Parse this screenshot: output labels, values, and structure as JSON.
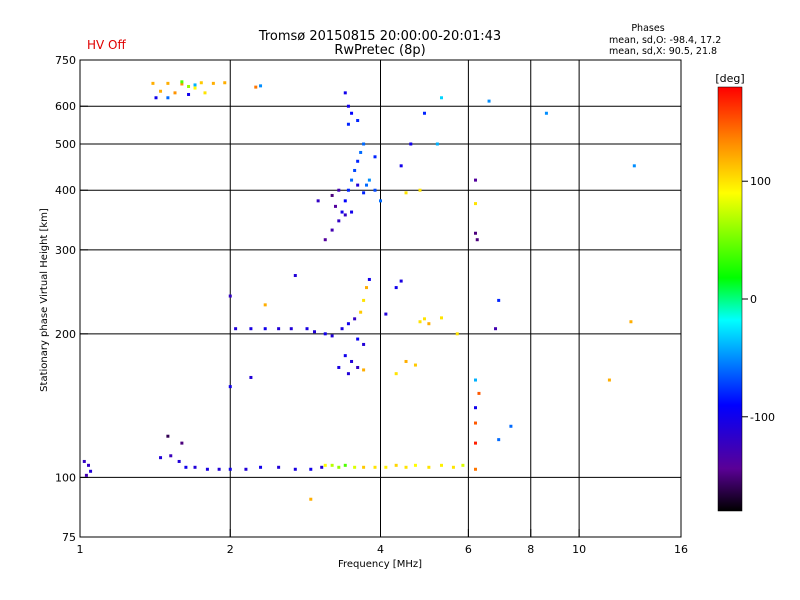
{
  "status": {
    "hv": "HV Off"
  },
  "header": {
    "title_line1": "Tromsø 20150815 20:00:00-20:01:43",
    "title_line2": "RwPretec (8p)"
  },
  "stats": {
    "heading": "Phases",
    "line_o": "mean, sd,O: -98.4, 17.2",
    "line_x": "mean, sd,X:  90.5, 21.8"
  },
  "colorbar": {
    "label": "[deg]",
    "ticks": [
      {
        "v": 100,
        "label": "100"
      },
      {
        "v": 0,
        "label": "0"
      },
      {
        "v": -100,
        "label": "-100"
      }
    ],
    "range": [
      -180,
      180
    ]
  },
  "chart_data": {
    "type": "scatter",
    "xlabel": "Frequency [MHz]",
    "ylabel": "Stationary phase Virtual Height [km]",
    "xscale": "log",
    "yscale": "log",
    "xlim": [
      1,
      16
    ],
    "ylim": [
      75,
      750
    ],
    "xticks": [
      1,
      2,
      4,
      6,
      8,
      10,
      16
    ],
    "xtick_labels": [
      "1",
      "2",
      "4",
      "6",
      "8",
      "10",
      "16"
    ],
    "x_grid": [
      2,
      4,
      6,
      8,
      10
    ],
    "yticks": [
      75,
      100,
      200,
      300,
      400,
      500,
      600,
      750
    ],
    "ytick_labels": [
      "75",
      "100",
      "200",
      "300",
      "400",
      "500",
      "600",
      "750"
    ],
    "y_grid": [
      100,
      200,
      300,
      400,
      500,
      600
    ],
    "color_scale": "phase in degrees, -180 (dark) to 180 (red)",
    "points": [
      [
        1.02,
        108,
        -120
      ],
      [
        1.04,
        106,
        -120
      ],
      [
        1.03,
        101,
        -130
      ],
      [
        1.05,
        103,
        -110
      ],
      [
        1.45,
        110,
        -110
      ],
      [
        1.52,
        111,
        -125
      ],
      [
        1.58,
        108,
        -110
      ],
      [
        1.63,
        105,
        -100
      ],
      [
        1.7,
        105,
        -110
      ],
      [
        1.8,
        104,
        -105
      ],
      [
        1.9,
        104,
        -110
      ],
      [
        2.0,
        104,
        -100
      ],
      [
        2.15,
        104,
        -110
      ],
      [
        2.3,
        105,
        -100
      ],
      [
        2.5,
        105,
        -110
      ],
      [
        2.7,
        104,
        -105
      ],
      [
        2.9,
        104,
        -100
      ],
      [
        3.05,
        105,
        -110
      ],
      [
        3.1,
        106,
        90
      ],
      [
        3.2,
        106,
        70
      ],
      [
        3.3,
        105,
        60
      ],
      [
        3.4,
        106,
        40
      ],
      [
        3.55,
        105,
        80
      ],
      [
        3.7,
        105,
        110
      ],
      [
        3.9,
        105,
        100
      ],
      [
        4.1,
        105,
        95
      ],
      [
        4.3,
        106,
        105
      ],
      [
        4.5,
        105,
        100
      ],
      [
        4.7,
        106,
        90
      ],
      [
        5.0,
        105,
        100
      ],
      [
        5.3,
        106,
        95
      ],
      [
        5.6,
        105,
        100
      ],
      [
        5.85,
        106,
        80
      ],
      [
        2.9,
        90,
        120
      ],
      [
        1.6,
        118,
        -150
      ],
      [
        1.5,
        122,
        -160
      ],
      [
        2.05,
        205,
        -110
      ],
      [
        2.2,
        205,
        -105
      ],
      [
        2.35,
        205,
        -100
      ],
      [
        2.5,
        205,
        -110
      ],
      [
        2.65,
        205,
        -110
      ],
      [
        2.85,
        205,
        -105
      ],
      [
        2.95,
        202,
        -110
      ],
      [
        3.1,
        200,
        -100
      ],
      [
        3.2,
        198,
        -110
      ],
      [
        3.35,
        205,
        -105
      ],
      [
        3.45,
        210,
        -100
      ],
      [
        3.55,
        215,
        -120
      ],
      [
        3.6,
        195,
        -95
      ],
      [
        3.7,
        190,
        -110
      ],
      [
        3.4,
        180,
        -100
      ],
      [
        3.5,
        175,
        -110
      ],
      [
        3.3,
        170,
        -105
      ],
      [
        3.6,
        170,
        -120
      ],
      [
        3.45,
        165,
        -110
      ],
      [
        3.7,
        168,
        120
      ],
      [
        3.65,
        222,
        110
      ],
      [
        3.7,
        235,
        100
      ],
      [
        3.75,
        250,
        120
      ],
      [
        3.8,
        260,
        -100
      ],
      [
        4.1,
        220,
        -110
      ],
      [
        4.3,
        250,
        -100
      ],
      [
        4.4,
        258,
        -105
      ],
      [
        4.8,
        212,
        100
      ],
      [
        5.0,
        210,
        120
      ],
      [
        4.5,
        175,
        120
      ],
      [
        4.7,
        172,
        110
      ],
      [
        4.3,
        165,
        100
      ],
      [
        4.9,
        215,
        100
      ],
      [
        5.3,
        216,
        100
      ],
      [
        5.7,
        200,
        100
      ],
      [
        6.8,
        205,
        -130
      ],
      [
        6.9,
        235,
        -80
      ],
      [
        12.7,
        212,
        120
      ],
      [
        11.5,
        160,
        120
      ],
      [
        2.0,
        240,
        -120
      ],
      [
        2.2,
        162,
        -110
      ],
      [
        2.0,
        155,
        -100
      ],
      [
        2.7,
        265,
        -110
      ],
      [
        2.35,
        230,
        120
      ],
      [
        3.1,
        315,
        -140
      ],
      [
        3.2,
        330,
        -130
      ],
      [
        3.3,
        345,
        -120
      ],
      [
        3.35,
        360,
        -100
      ],
      [
        3.4,
        380,
        -90
      ],
      [
        3.45,
        400,
        -80
      ],
      [
        3.5,
        420,
        -60
      ],
      [
        3.55,
        440,
        -70
      ],
      [
        3.6,
        460,
        -80
      ],
      [
        3.65,
        480,
        -60
      ],
      [
        3.7,
        500,
        -60
      ],
      [
        3.6,
        410,
        -110
      ],
      [
        3.2,
        390,
        -150
      ],
      [
        3.3,
        400,
        -130
      ],
      [
        3.0,
        380,
        -120
      ],
      [
        3.25,
        370,
        -140
      ],
      [
        3.4,
        355,
        -120
      ],
      [
        3.5,
        360,
        -100
      ],
      [
        3.7,
        395,
        -80
      ],
      [
        3.75,
        410,
        -60
      ],
      [
        3.8,
        420,
        -50
      ],
      [
        3.45,
        550,
        -80
      ],
      [
        3.5,
        580,
        -90
      ],
      [
        3.45,
        600,
        -100
      ],
      [
        3.4,
        640,
        -100
      ],
      [
        3.6,
        560,
        -80
      ],
      [
        3.9,
        400,
        -70
      ],
      [
        4.0,
        380,
        -60
      ],
      [
        3.9,
        470,
        -80
      ],
      [
        4.4,
        450,
        -100
      ],
      [
        4.5,
        395,
        100
      ],
      [
        4.8,
        400,
        100
      ],
      [
        4.6,
        500,
        -100
      ],
      [
        4.9,
        580,
        -80
      ],
      [
        5.2,
        500,
        -40
      ],
      [
        5.3,
        625,
        -30
      ],
      [
        6.2,
        420,
        -140
      ],
      [
        6.2,
        375,
        100
      ],
      [
        6.2,
        325,
        -150
      ],
      [
        6.25,
        315,
        -150
      ],
      [
        6.2,
        160,
        -40
      ],
      [
        6.2,
        140,
        -100
      ],
      [
        6.3,
        150,
        150
      ],
      [
        6.2,
        130,
        150
      ],
      [
        6.2,
        118,
        170
      ],
      [
        6.2,
        104,
        140
      ],
      [
        6.6,
        615,
        -50
      ],
      [
        7.3,
        128,
        -60
      ],
      [
        8.6,
        580,
        -50
      ],
      [
        12.9,
        450,
        -50
      ],
      [
        6.9,
        120,
        -60
      ],
      [
        1.4,
        670,
        120
      ],
      [
        1.5,
        670,
        120
      ],
      [
        1.6,
        668,
        130
      ],
      [
        1.65,
        660,
        60
      ],
      [
        1.7,
        665,
        -40
      ],
      [
        1.75,
        672,
        110
      ],
      [
        1.85,
        670,
        120
      ],
      [
        1.95,
        672,
        120
      ],
      [
        1.45,
        645,
        120
      ],
      [
        1.55,
        640,
        130
      ],
      [
        1.65,
        635,
        -100
      ],
      [
        1.78,
        640,
        100
      ],
      [
        1.42,
        625,
        -100
      ],
      [
        1.5,
        625,
        -60
      ],
      [
        2.25,
        658,
        140
      ],
      [
        2.3,
        662,
        -50
      ],
      [
        1.6,
        675,
        40
      ],
      [
        1.7,
        655,
        90
      ]
    ]
  }
}
